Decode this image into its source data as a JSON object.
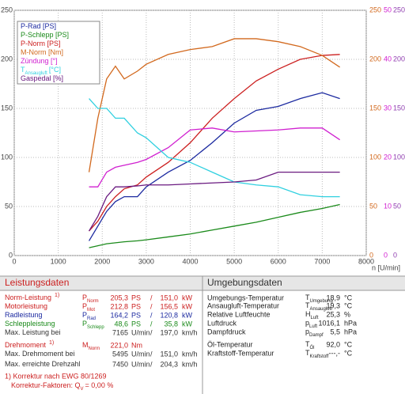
{
  "chart_data": {
    "type": "line",
    "xlim": [
      0,
      8000
    ],
    "xticks": [
      0,
      1000,
      2000,
      3000,
      4000,
      5000,
      6000,
      7000,
      8000
    ],
    "xlabel": "n [U/min]",
    "ylim": [
      0,
      250
    ],
    "yticks": [
      0,
      50,
      100,
      150,
      200,
      250
    ],
    "y2lim": [
      0,
      250
    ],
    "y2ticks": [
      0,
      50,
      100,
      150,
      200,
      250
    ],
    "y2color": "#d2691e",
    "y3lim": [
      0,
      50
    ],
    "y3ticks": [
      0,
      10,
      20,
      30,
      40,
      50
    ],
    "y3color": "#d020d0",
    "y4lim": [
      0,
      250
    ],
    "y4ticks": [
      0,
      50,
      100,
      150,
      200,
      250
    ],
    "y4color": "#9040b0",
    "grid": true,
    "x": [
      1700,
      1900,
      2100,
      2300,
      2500,
      2800,
      3000,
      3500,
      4000,
      4500,
      5000,
      5500,
      6000,
      6500,
      7000,
      7400
    ],
    "series": [
      {
        "name": "P-Rad [PS]",
        "color": "#1c2aa0",
        "values": [
          15,
          30,
          45,
          55,
          60,
          60,
          70,
          85,
          97,
          115,
          135,
          148,
          152,
          160,
          166,
          160
        ]
      },
      {
        "name": "P-Schlepp [PS]",
        "color": "#1a8a1a",
        "values": [
          8,
          10,
          12,
          13,
          14,
          15,
          16,
          19,
          22,
          26,
          30,
          34,
          39,
          44,
          48,
          52
        ]
      },
      {
        "name": "P-Norm [PS]",
        "color": "#cc2020",
        "values": [
          25,
          35,
          50,
          60,
          68,
          72,
          80,
          95,
          115,
          140,
          160,
          178,
          190,
          200,
          204,
          205
        ]
      },
      {
        "name": "M-Norm [Nm]",
        "color": "#d2691e",
        "axis": "y2",
        "values": [
          85,
          140,
          180,
          193,
          180,
          188,
          195,
          205,
          210,
          213,
          221,
          221,
          218,
          213,
          204,
          192
        ]
      },
      {
        "name": "Zündung [°]",
        "color": "#d020d0",
        "axis": "y3",
        "values": [
          14,
          14,
          17,
          18,
          18.4,
          19,
          19.6,
          22,
          25.6,
          26,
          25.2,
          25.4,
          25.6,
          26,
          26,
          23.6
        ]
      },
      {
        "name": "T",
        "name_sub": "Ansaugluft",
        "name_unit": "[°C]",
        "color": "#30d0e0",
        "values": [
          160,
          150,
          150,
          140,
          140,
          125,
          120,
          100,
          95,
          85,
          75,
          72,
          70,
          62,
          60,
          60
        ]
      },
      {
        "name": "Gaspedal [%]",
        "color": "#6a1a80",
        "axis": "y4",
        "values": [
          25,
          40,
          60,
          70,
          70,
          71,
          72,
          72,
          73,
          74,
          75,
          77,
          85,
          85,
          85,
          85
        ]
      }
    ]
  },
  "left_panel": {
    "title": "Leistungsdaten",
    "rows": [
      {
        "label": "Norm-Leistung",
        "note": "1)",
        "sym": "P",
        "sub": "Norm",
        "v1": "205,3",
        "u1": "PS",
        "sep": "/",
        "v2": "151,0",
        "u2": "kW",
        "color": "#cc2020"
      },
      {
        "label": "Motorleistung",
        "sym": "P",
        "sub": "Mot",
        "v1": "212,8",
        "u1": "PS",
        "sep": "/",
        "v2": "156,5",
        "u2": "kW",
        "color": "#cc2020"
      },
      {
        "label": "Radleistung",
        "sym": "P",
        "sub": "Rad",
        "v1": "164,2",
        "u1": "PS",
        "sep": "/",
        "v2": "120,8",
        "u2": "kW",
        "color": "#1c2aa0"
      },
      {
        "label": "Schleppleistung",
        "sym": "P",
        "sub": "Schlepp",
        "v1": "48,6",
        "u1": "PS",
        "sep": "/",
        "v2": "35,8",
        "u2": "kW",
        "color": "#1a8a1a"
      },
      {
        "label": "Max. Leistung bei",
        "v1": "7165",
        "u1": "U/min",
        "sep": "/",
        "v2": "197,0",
        "u2": "km/h",
        "color": "#333333"
      },
      {
        "label": "Drehmoment",
        "note": "1)",
        "sym": "M",
        "sub": "Norm",
        "v1": "221,0",
        "u1": "Nm",
        "color": "#cc2020"
      },
      {
        "label": "Max. Drehmoment bei",
        "v1": "5495",
        "u1": "U/min",
        "sep": "/",
        "v2": "151,0",
        "u2": "km/h",
        "color": "#333333"
      },
      {
        "label": "Max. erreichte Drehzahl",
        "v1": "7450",
        "u1": "U/min",
        "sep": "/",
        "v2": "204,3",
        "u2": "km/h",
        "color": "#333333"
      }
    ],
    "footnotes": [
      "1) Korrektur nach EWG 80/1269",
      "Korrektur-Faktoren: Q",
      "V",
      "=  0,00 %"
    ]
  },
  "right_panel": {
    "title": "Umgebungsdaten",
    "rows": [
      {
        "label": "Umgebungs-Temperatur",
        "sym": "T",
        "sub": "Umgebung",
        "v1": "18,9",
        "u1": "°C"
      },
      {
        "label": "Ansaugluft-Temperatur",
        "sym": "T",
        "sub": "Ansaugluft",
        "v1": "19,3",
        "u1": "°C"
      },
      {
        "label": "Relative Luftfeuchte",
        "sym": "H",
        "sub": "Luft",
        "v1": "25,3",
        "u1": "%"
      },
      {
        "label": "Luftdruck",
        "sym": "p",
        "sub": "Luft",
        "v1": "1016,1",
        "u1": "hPa"
      },
      {
        "label": "Dampfdruck",
        "sym": "p",
        "sub": "Dampf",
        "v1": "5,5",
        "u1": "hPa"
      },
      {
        "label": "Öl-Temperatur",
        "sym": "T",
        "sub": "Öl",
        "v1": "92,0",
        "u1": "°C"
      },
      {
        "label": "Kraftstoff-Temperatur",
        "sym": "T",
        "sub": "Kraftstoff",
        "v1": "---,-",
        "u1": "°C"
      }
    ]
  }
}
